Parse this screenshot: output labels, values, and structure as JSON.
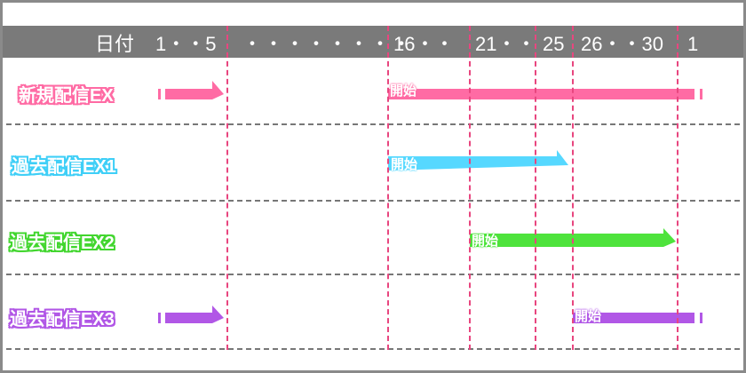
{
  "header": {
    "date_label": "日付",
    "cols": [
      "1・・5",
      "・・・・・・・・",
      "16・・",
      "21・・",
      "25",
      "26・・30",
      "1"
    ]
  },
  "colors": {
    "pink": "#ff6ba4",
    "cyan": "#56d8ff",
    "green": "#4ee33c",
    "purple": "#b157e6"
  },
  "rows": [
    {
      "label": "新規配信EX",
      "start_label": "開始"
    },
    {
      "label": "過去配信EX1",
      "start_label": "開始"
    },
    {
      "label": "過去配信EX2",
      "start_label": "開始"
    },
    {
      "label": "過去配信EX3",
      "start_label": "開始"
    }
  ]
}
